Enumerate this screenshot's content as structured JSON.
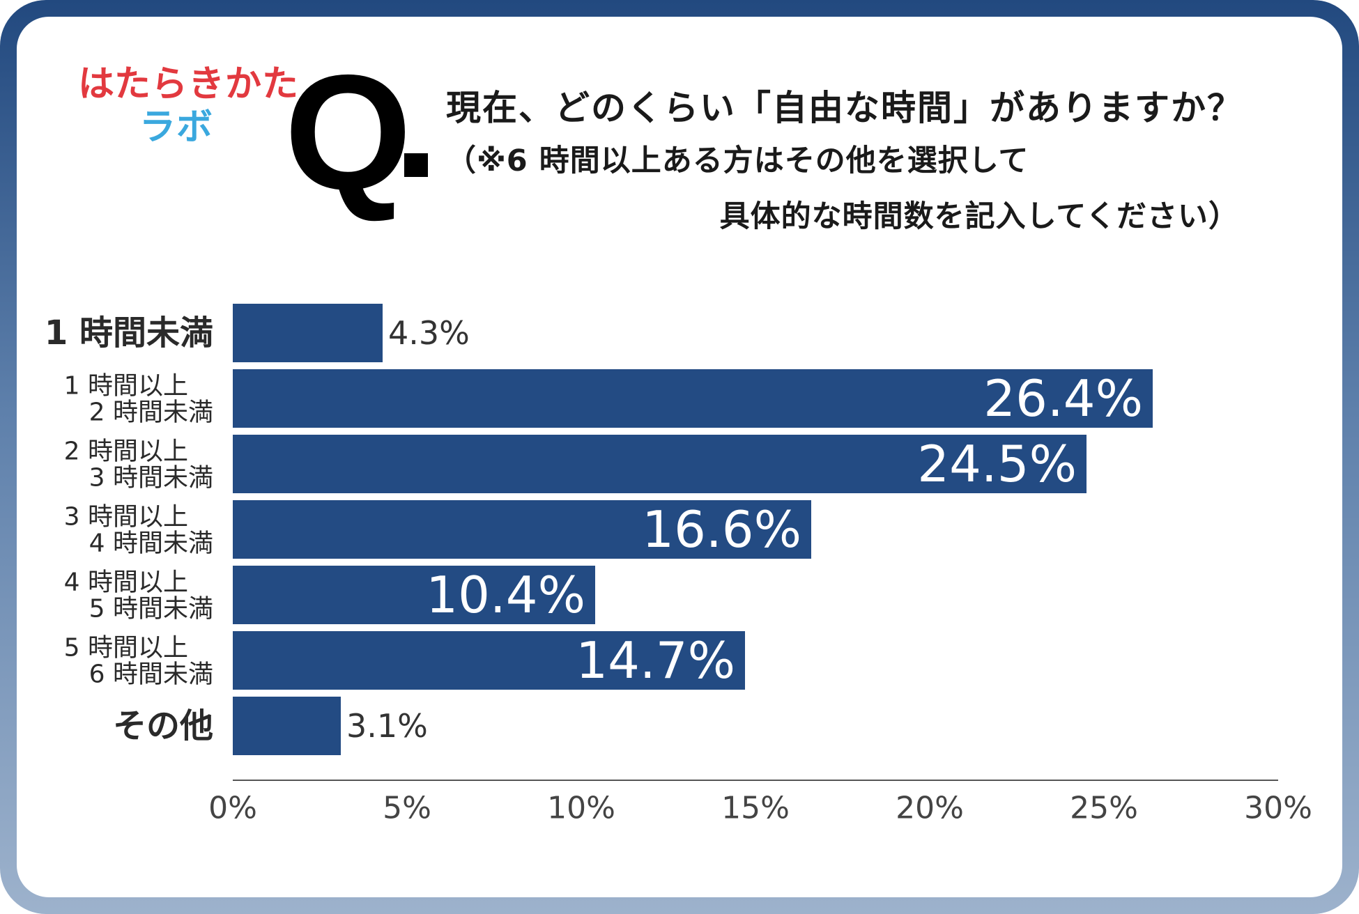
{
  "header": {
    "logo_line1": "はたらきかた",
    "logo_line2": "ラボ",
    "q_mark": "Q",
    "question_line1": "現在、どのくらい「自由な時間」がありますか？",
    "question_line2": "（※6 時間以上ある方はその他を選択して",
    "question_line3": "具体的な時間数を記入してください）"
  },
  "colors": {
    "bar": "#234b83",
    "frame": "#22497f",
    "logo_red": "#e2393f",
    "logo_blue": "#3aa8de"
  },
  "chart_data": {
    "type": "bar",
    "orientation": "horizontal",
    "categories": [
      [
        "1 時間未満"
      ],
      [
        "1 時間以上",
        "2 時間未満"
      ],
      [
        "2 時間以上",
        "3 時間未満"
      ],
      [
        "3 時間以上",
        "4 時間未満"
      ],
      [
        "4 時間以上",
        "5 時間未満"
      ],
      [
        "5 時間以上",
        "6 時間未満"
      ],
      [
        "その他"
      ]
    ],
    "values": [
      4.3,
      26.4,
      24.5,
      16.6,
      10.4,
      14.7,
      3.1
    ],
    "value_labels": [
      "4.3%",
      "26.4%",
      "24.5%",
      "16.6%",
      "10.4%",
      "14.7%",
      "3.1%"
    ],
    "xlim": [
      0,
      30
    ],
    "xticks": [
      0,
      5,
      10,
      15,
      20,
      25,
      30
    ],
    "xtick_labels": [
      "0%",
      "5%",
      "10%",
      "15%",
      "20%",
      "25%",
      "30%"
    ],
    "grid": false,
    "legend": "none"
  }
}
